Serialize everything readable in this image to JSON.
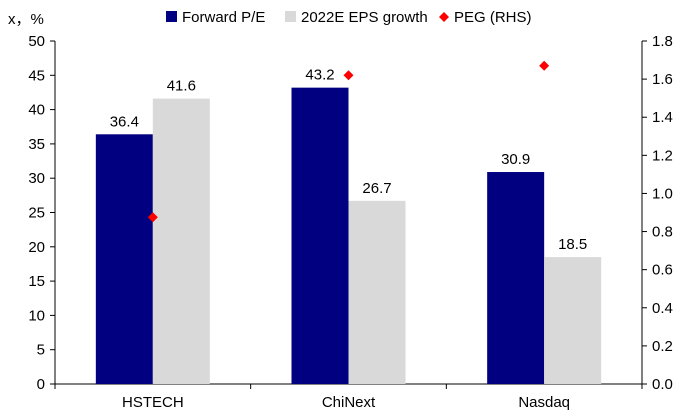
{
  "chart_data": {
    "type": "bar",
    "unit_label": "x，%",
    "categories": [
      "HSTECH",
      "ChiNext",
      "Nasdaq"
    ],
    "series": [
      {
        "name": "Forward P/E",
        "type": "bar",
        "axis": "left",
        "color": "#000080",
        "values": [
          36.4,
          43.2,
          30.9
        ],
        "labels": [
          "36.4",
          "43.2",
          "30.9"
        ]
      },
      {
        "name": "2022E EPS growth",
        "type": "bar",
        "axis": "left",
        "color": "#d9d9d9",
        "values": [
          41.6,
          26.7,
          18.5
        ],
        "labels": [
          "41.6",
          "26.7",
          "18.5"
        ]
      },
      {
        "name": "PEG (RHS)",
        "type": "scatter",
        "axis": "right",
        "color": "#ff0000",
        "marker": "diamond",
        "values": [
          0.875,
          1.62,
          1.67
        ]
      }
    ],
    "y_left": {
      "min": 0,
      "max": 50,
      "step": 5,
      "ticks": [
        "0",
        "5",
        "10",
        "15",
        "20",
        "25",
        "30",
        "35",
        "40",
        "45",
        "50"
      ]
    },
    "y_right": {
      "min": 0,
      "max": 1.8,
      "step": 0.2,
      "ticks": [
        "0.0",
        "0.2",
        "0.4",
        "0.6",
        "0.8",
        "1.0",
        "1.2",
        "1.4",
        "1.6",
        "1.8"
      ]
    },
    "legend": {
      "placement": "top"
    },
    "grid": false
  }
}
